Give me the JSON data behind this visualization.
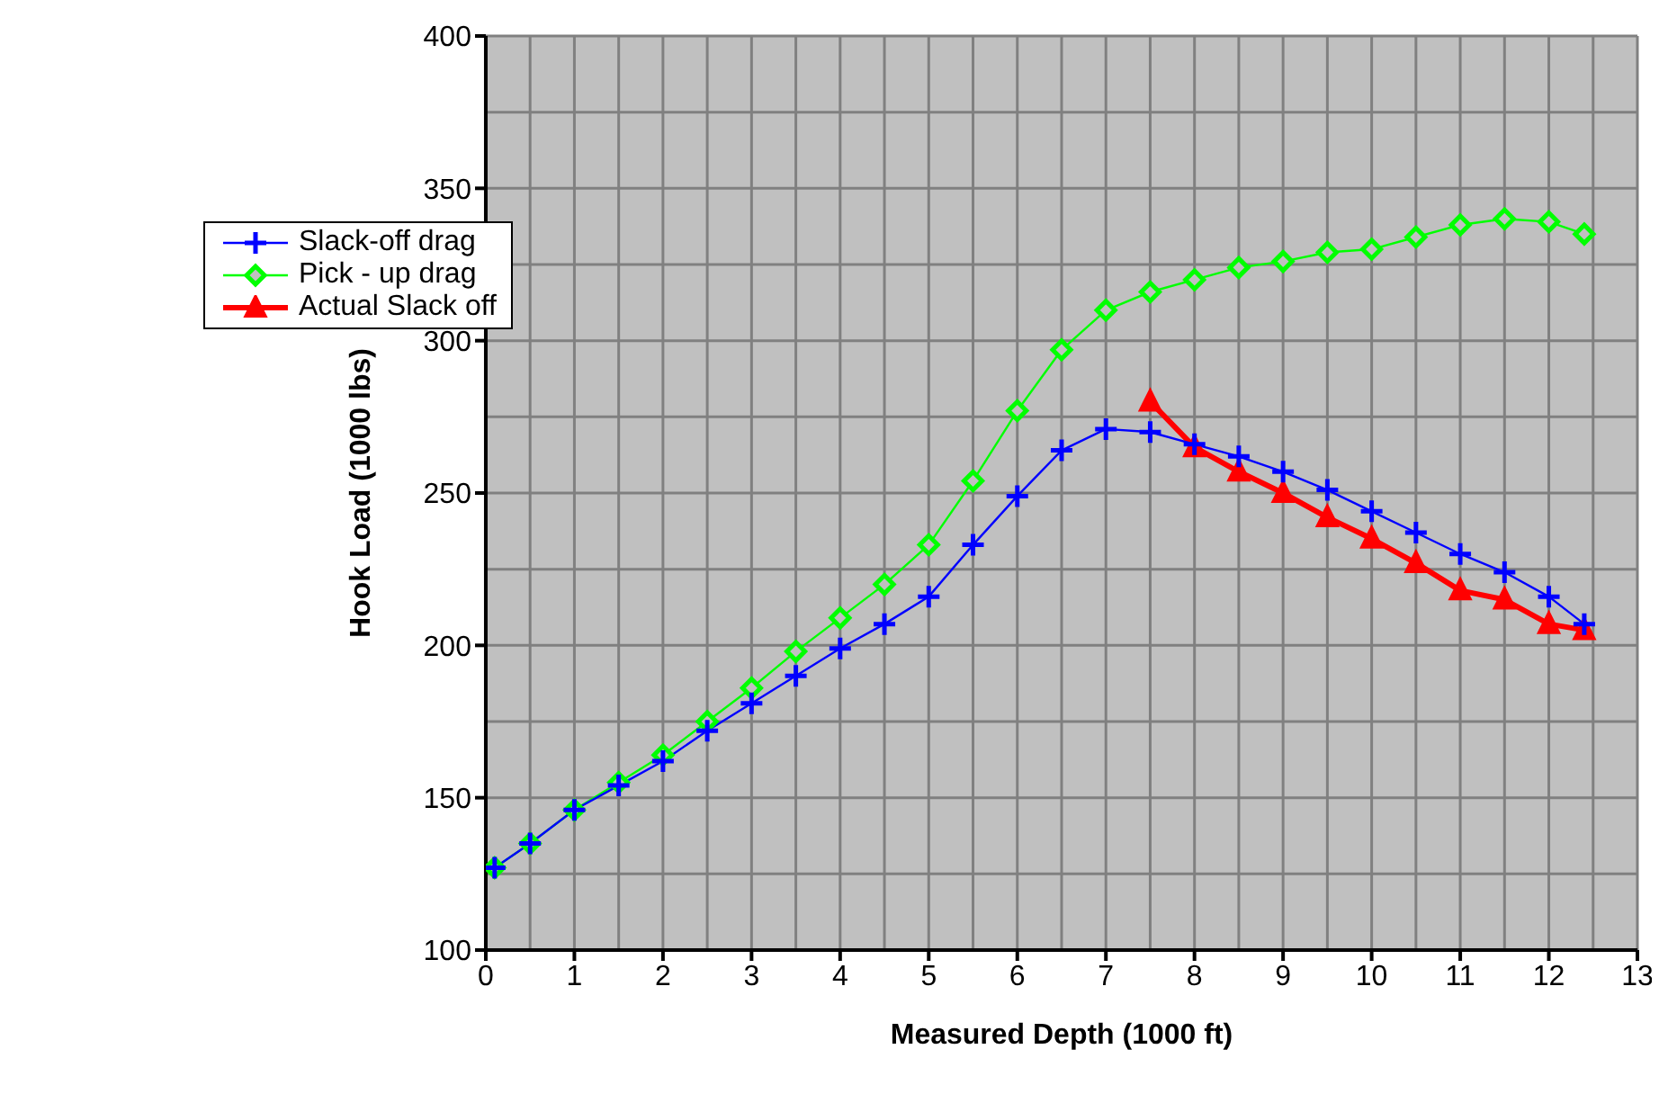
{
  "chart_data": {
    "type": "line",
    "xlabel": "Measured Depth (1000 ft)",
    "ylabel": "Hook Load (1000  lbs)",
    "xlim": [
      0,
      13
    ],
    "xticks": [
      0,
      1,
      2,
      3,
      4,
      5,
      6,
      7,
      8,
      9,
      10,
      11,
      12,
      13
    ],
    "ylim": [
      100,
      400
    ],
    "yticks": [
      100,
      150,
      200,
      250,
      300,
      350,
      400
    ],
    "grid": true,
    "legend": "top left",
    "series": [
      {
        "name": "Slack-off drag",
        "color": "#0000ff",
        "marker": "cross",
        "x": [
          0.1,
          0.5,
          1,
          1.5,
          2,
          2.5,
          3,
          3.5,
          4,
          4.5,
          5,
          5.5,
          6,
          6.5,
          7,
          7.5,
          8,
          8.5,
          9,
          9.5,
          10,
          10.5,
          11,
          11.5,
          12,
          12.4
        ],
        "values": [
          127,
          135,
          146,
          154,
          162,
          172,
          181,
          190,
          199,
          207,
          216,
          233,
          249,
          264,
          271,
          270,
          266,
          262,
          257,
          251,
          244,
          237,
          230,
          224,
          216,
          207
        ]
      },
      {
        "name": "Pick - up drag",
        "color": "#00ff00",
        "marker": "diamond",
        "x": [
          0.1,
          0.5,
          1,
          1.5,
          2,
          2.5,
          3,
          3.5,
          4,
          4.5,
          5,
          5.5,
          6,
          6.5,
          7,
          7.5,
          8,
          8.5,
          9,
          9.5,
          10,
          10.5,
          11,
          11.5,
          12,
          12.4
        ],
        "values": [
          127,
          135,
          146,
          155,
          164,
          175,
          186,
          198,
          209,
          220,
          233,
          254,
          277,
          297,
          310,
          316,
          320,
          324,
          326,
          329,
          330,
          334,
          338,
          340,
          339,
          335
        ]
      },
      {
        "name": "Actual Slack off",
        "color": "#ff0000",
        "marker": "triangle",
        "x": [
          7.5,
          8,
          8.5,
          9,
          9.5,
          10,
          10.5,
          11,
          11.5,
          12,
          12.4
        ],
        "values": [
          280,
          265,
          257,
          250,
          242,
          235,
          227,
          218,
          215,
          207,
          205
        ]
      }
    ]
  }
}
